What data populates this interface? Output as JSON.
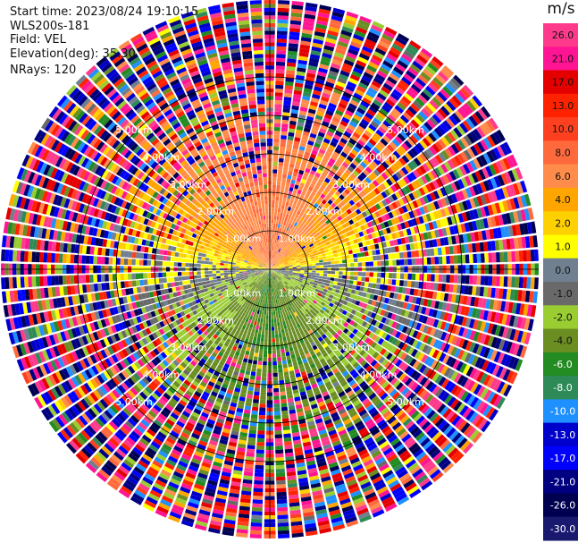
{
  "header": {
    "start_time": "Start time: 2023/08/24 19:10:15",
    "instrument": "WLS200s-181",
    "field": "Field: VEL",
    "elevation": "Elevation(deg): 35.30",
    "nrays": "NRays: 120"
  },
  "colorbar": {
    "unit": "m/s",
    "ticks": [
      "26.0",
      "21.0",
      "17.0",
      "13.0",
      "10.0",
      "8.0",
      "6.0",
      "4.0",
      "2.0",
      "1.0",
      "0.0",
      "-1.0",
      "-2.0",
      "-4.0",
      "-6.0",
      "-8.0",
      "-10.0",
      "-13.0",
      "-17.0",
      "-21.0",
      "-26.0",
      "-30.0"
    ],
    "colors": [
      "#ff3a8c",
      "#ff1493",
      "#e50000",
      "#ff2200",
      "#ff4020",
      "#ff6a3d",
      "#ff8c4a",
      "#ffa500",
      "#ffd000",
      "#ffff00",
      "#708090",
      "#696969",
      "#9acd32",
      "#6b8e23",
      "#228b22",
      "#2e8b57",
      "#1e90ff",
      "#0000cd",
      "#0000ff",
      "#000080",
      "#000050",
      "#191970"
    ]
  },
  "chart_data": {
    "type": "heatmap",
    "title": "",
    "field": "VEL",
    "unit": "m/s",
    "elevation_deg": 35.3,
    "n_rays": 120,
    "range_ring_labels_km": [
      "1.00km",
      "2.00km",
      "3.00km",
      "4.00km",
      "5.00km"
    ],
    "range_rings_km": [
      1,
      2,
      3,
      4,
      5
    ],
    "max_range_km": 7,
    "ray_azimuth_step_deg": 3,
    "velocity_pattern": {
      "near_field_positive_direction": "north",
      "near_field_negative_direction": "south",
      "near_field_abs_max_mps": 6,
      "outer_range_noisy_from_km": 4
    },
    "colorbar_ticks_mps": [
      26,
      21,
      17,
      13,
      10,
      8,
      6,
      4,
      2,
      1,
      0,
      -1,
      -2,
      -4,
      -6,
      -8,
      -10,
      -13,
      -17,
      -21,
      -26,
      -30
    ]
  }
}
